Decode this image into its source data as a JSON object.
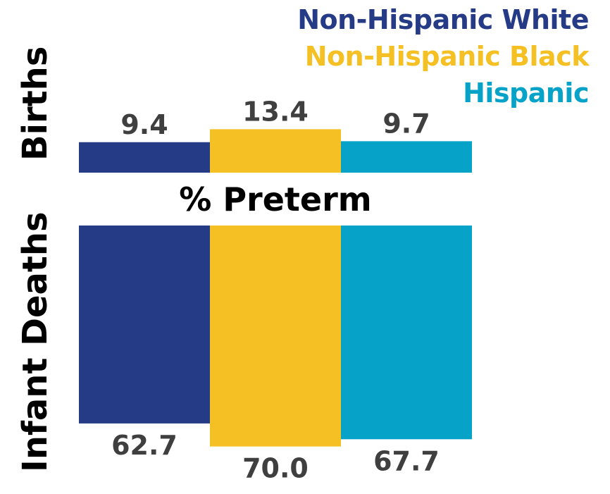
{
  "colors": {
    "white": "#263B86",
    "black": "#F5C024",
    "hispanic": "#06A2C8",
    "value_text": "#3F3F3F"
  },
  "legend": [
    {
      "label": "Non-Hispanic White",
      "color": "#263B86"
    },
    {
      "label": "Non-Hispanic Black",
      "color": "#F5C024"
    },
    {
      "label": "Hispanic",
      "color": "#06A2C8"
    }
  ],
  "center_title": "% Preterm",
  "chart_data": [
    {
      "type": "bar",
      "row_label": "Births",
      "categories": [
        "Non-Hispanic White",
        "Non-Hispanic Black",
        "Hispanic"
      ],
      "values": [
        9.4,
        13.4,
        9.7
      ],
      "value_labels": [
        "9.4",
        "13.4",
        "9.7"
      ]
    },
    {
      "type": "bar",
      "row_label": "Infant Deaths",
      "categories": [
        "Non-Hispanic White",
        "Non-Hispanic Black",
        "Hispanic"
      ],
      "values": [
        62.7,
        70.0,
        67.7
      ],
      "value_labels": [
        "62.7",
        "70.0",
        "67.7"
      ]
    }
  ]
}
